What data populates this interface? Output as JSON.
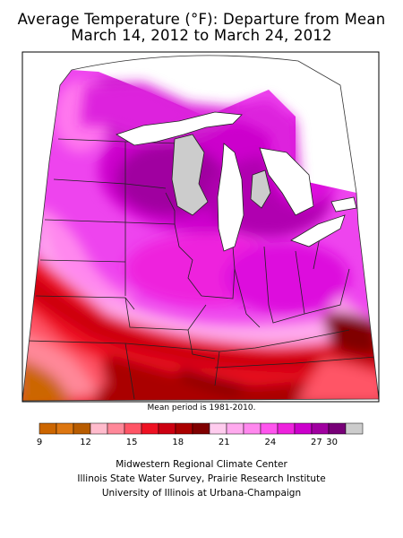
{
  "title": {
    "line1": "Average Temperature (°F): Departure from Mean",
    "line2": "March 14, 2012 to March 24, 2012"
  },
  "mean_note": "Mean period is 1981-2010.",
  "legend": {
    "colors": [
      "#cc6600",
      "#dd7711",
      "#b85c00",
      "#ffbbcc",
      "#ff8899",
      "#ff5566",
      "#ee1122",
      "#cc0011",
      "#aa0000",
      "#800000",
      "#ffccee",
      "#ffaaee",
      "#ff88ee",
      "#ff55ee",
      "#ee22dd",
      "#cc00cc",
      "#a000a0",
      "#780078",
      "#cccccc"
    ],
    "tick_labels": [
      "9",
      "12",
      "15",
      "18",
      "21",
      "24",
      "27",
      "30"
    ]
  },
  "credits": [
    "Midwestern Regional Climate Center",
    "Illinois State Water Survey, Prairie Research Institute",
    "University of Illinois at Urbana-Champaign"
  ]
}
